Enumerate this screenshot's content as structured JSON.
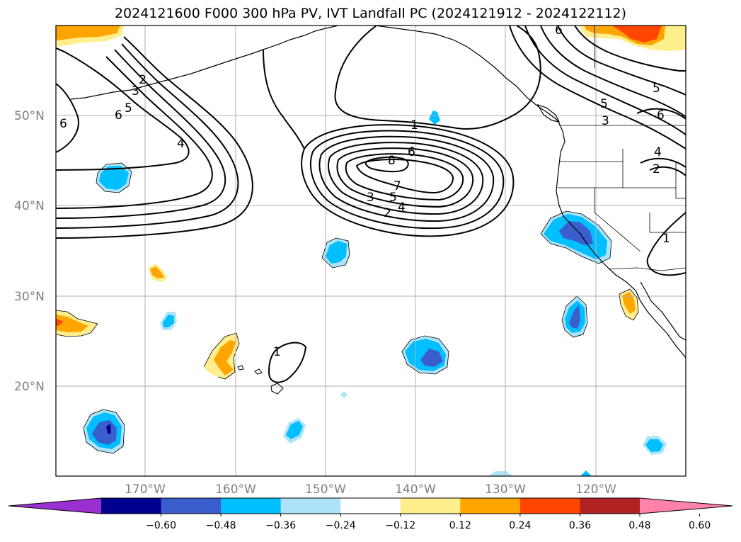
{
  "title": "2024121600 F000 300 hPa PV, IVT Landfall PC (2024121912 - 2024122112)",
  "lat_labels": [
    "50°N",
    "40°N",
    "30°N",
    "20°N"
  ],
  "lon_labels": [
    "170°W",
    "160°W",
    "150°W",
    "140°W",
    "130°W",
    "120°W"
  ],
  "contour_labels": [
    "1",
    "2",
    "3",
    "4",
    "5",
    "6",
    "7",
    "8"
  ],
  "colorbar": {
    "ticks": [
      "-0.60",
      "-0.48",
      "-0.36",
      "-0.24",
      "-0.12",
      "0.12",
      "0.24",
      "0.36",
      "0.48",
      "0.60"
    ],
    "colors": [
      "#9b30d0",
      "#000090",
      "#3a5fcd",
      "#00bfff",
      "#aee4fa",
      "#ffffff",
      "#ffee8c",
      "#ffa500",
      "#ff4500",
      "#b22222",
      "#ff82ab"
    ]
  },
  "colors": {
    "positive_light": "#ffee8c",
    "positive_mid": "#ffa500",
    "positive_strong": "#ff4500",
    "negative_light": "#aee4fa",
    "negative_mid": "#00bfff",
    "negative_strong": "#3a5fcd",
    "negative_deep": "#000090"
  }
}
